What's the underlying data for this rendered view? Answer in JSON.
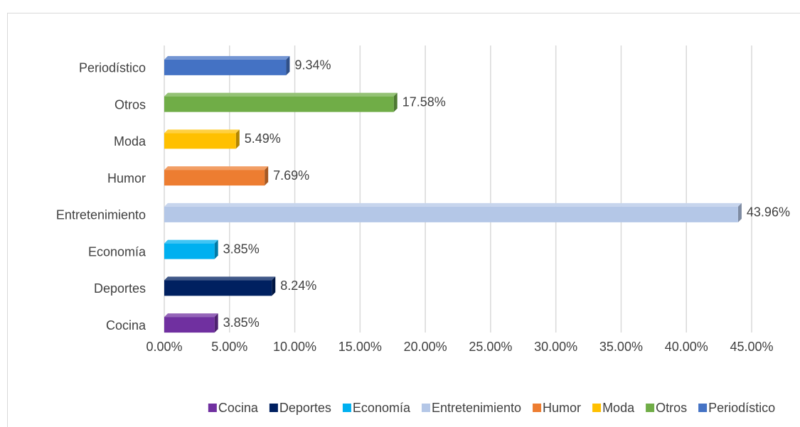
{
  "chart_data": {
    "type": "bar",
    "orientation": "horizontal",
    "categories": [
      "Cocina",
      "Deportes",
      "Economía",
      "Entretenimiento",
      "Humor",
      "Moda",
      "Otros",
      "Periodístico"
    ],
    "values": [
      3.85,
      8.24,
      3.85,
      43.96,
      7.69,
      5.49,
      17.58,
      9.34
    ],
    "value_labels": [
      "3.85%",
      "8.24%",
      "3.85%",
      "43.96%",
      "7.69%",
      "5.49%",
      "17.58%",
      "9.34%"
    ],
    "colors": [
      "#7030a0",
      "#002060",
      "#00b0f0",
      "#b4c7e7",
      "#ed7d31",
      "#ffc000",
      "#70ad47",
      "#4472c4"
    ],
    "xlim": [
      0,
      45
    ],
    "xticks": [
      {
        "value": 0,
        "label": "0.00%"
      },
      {
        "value": 5,
        "label": "5.00%"
      },
      {
        "value": 10,
        "label": "10.00%"
      },
      {
        "value": 15,
        "label": "15.00%"
      },
      {
        "value": 20,
        "label": "20.00%"
      },
      {
        "value": 25,
        "label": "25.00%"
      },
      {
        "value": 30,
        "label": "30.00%"
      },
      {
        "value": 35,
        "label": "35.00%"
      },
      {
        "value": 40,
        "label": "40.00%"
      },
      {
        "value": 45,
        "label": "45.00%"
      }
    ],
    "grid": true,
    "legend": "bottom"
  }
}
